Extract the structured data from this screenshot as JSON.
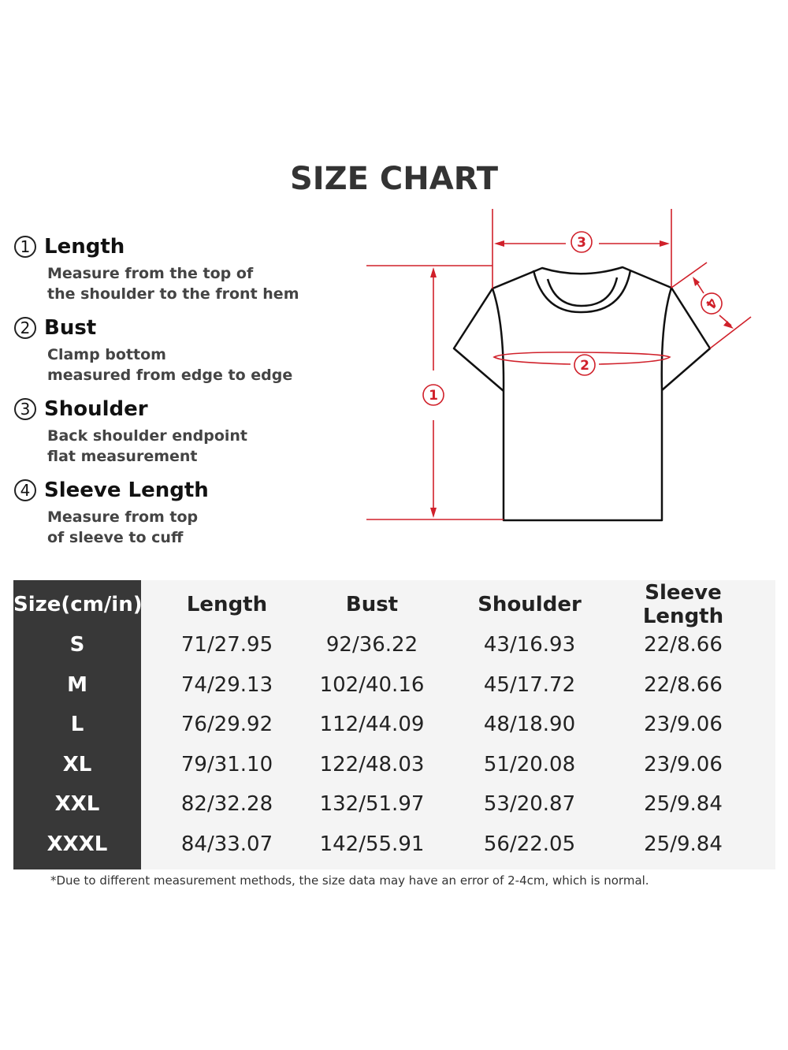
{
  "title": "SIZE CHART",
  "guide": [
    {
      "num": "1",
      "label": "Length",
      "desc": [
        "Measure from the top of",
        "the shoulder to the front hem"
      ]
    },
    {
      "num": "2",
      "label": "Bust",
      "desc": [
        "Clamp bottom",
        "measured from edge to edge"
      ]
    },
    {
      "num": "3",
      "label": "Shoulder",
      "desc": [
        "Back shoulder endpoint",
        "flat measurement"
      ]
    },
    {
      "num": "4",
      "label": "Sleeve Length",
      "desc": [
        "Measure from top",
        "of sleeve to cuff"
      ]
    }
  ],
  "diagram": {
    "markers": [
      "1",
      "2",
      "3",
      "4"
    ],
    "accent_color": "#d0202a",
    "outline_color": "#111111"
  },
  "table": {
    "headers": [
      "Size(cm/in)",
      "Length",
      "Bust",
      "Shoulder",
      "Sleeve Length"
    ],
    "rows": [
      [
        "S",
        "71/27.95",
        "92/36.22",
        "43/16.93",
        "22/8.66"
      ],
      [
        "M",
        "74/29.13",
        "102/40.16",
        "45/17.72",
        "22/8.66"
      ],
      [
        "L",
        "76/29.92",
        "112/44.09",
        "48/18.90",
        "23/9.06"
      ],
      [
        "XL",
        "79/31.10",
        "122/48.03",
        "51/20.08",
        "23/9.06"
      ],
      [
        "XXL",
        "82/32.28",
        "132/51.97",
        "53/20.87",
        "25/9.84"
      ],
      [
        "XXXL",
        "84/33.07",
        "142/55.91",
        "56/22.05",
        "25/9.84"
      ]
    ],
    "size_column_color": "#383838"
  },
  "note": "*Due to different measurement methods, the size data may have an error of 2-4cm, which is normal."
}
